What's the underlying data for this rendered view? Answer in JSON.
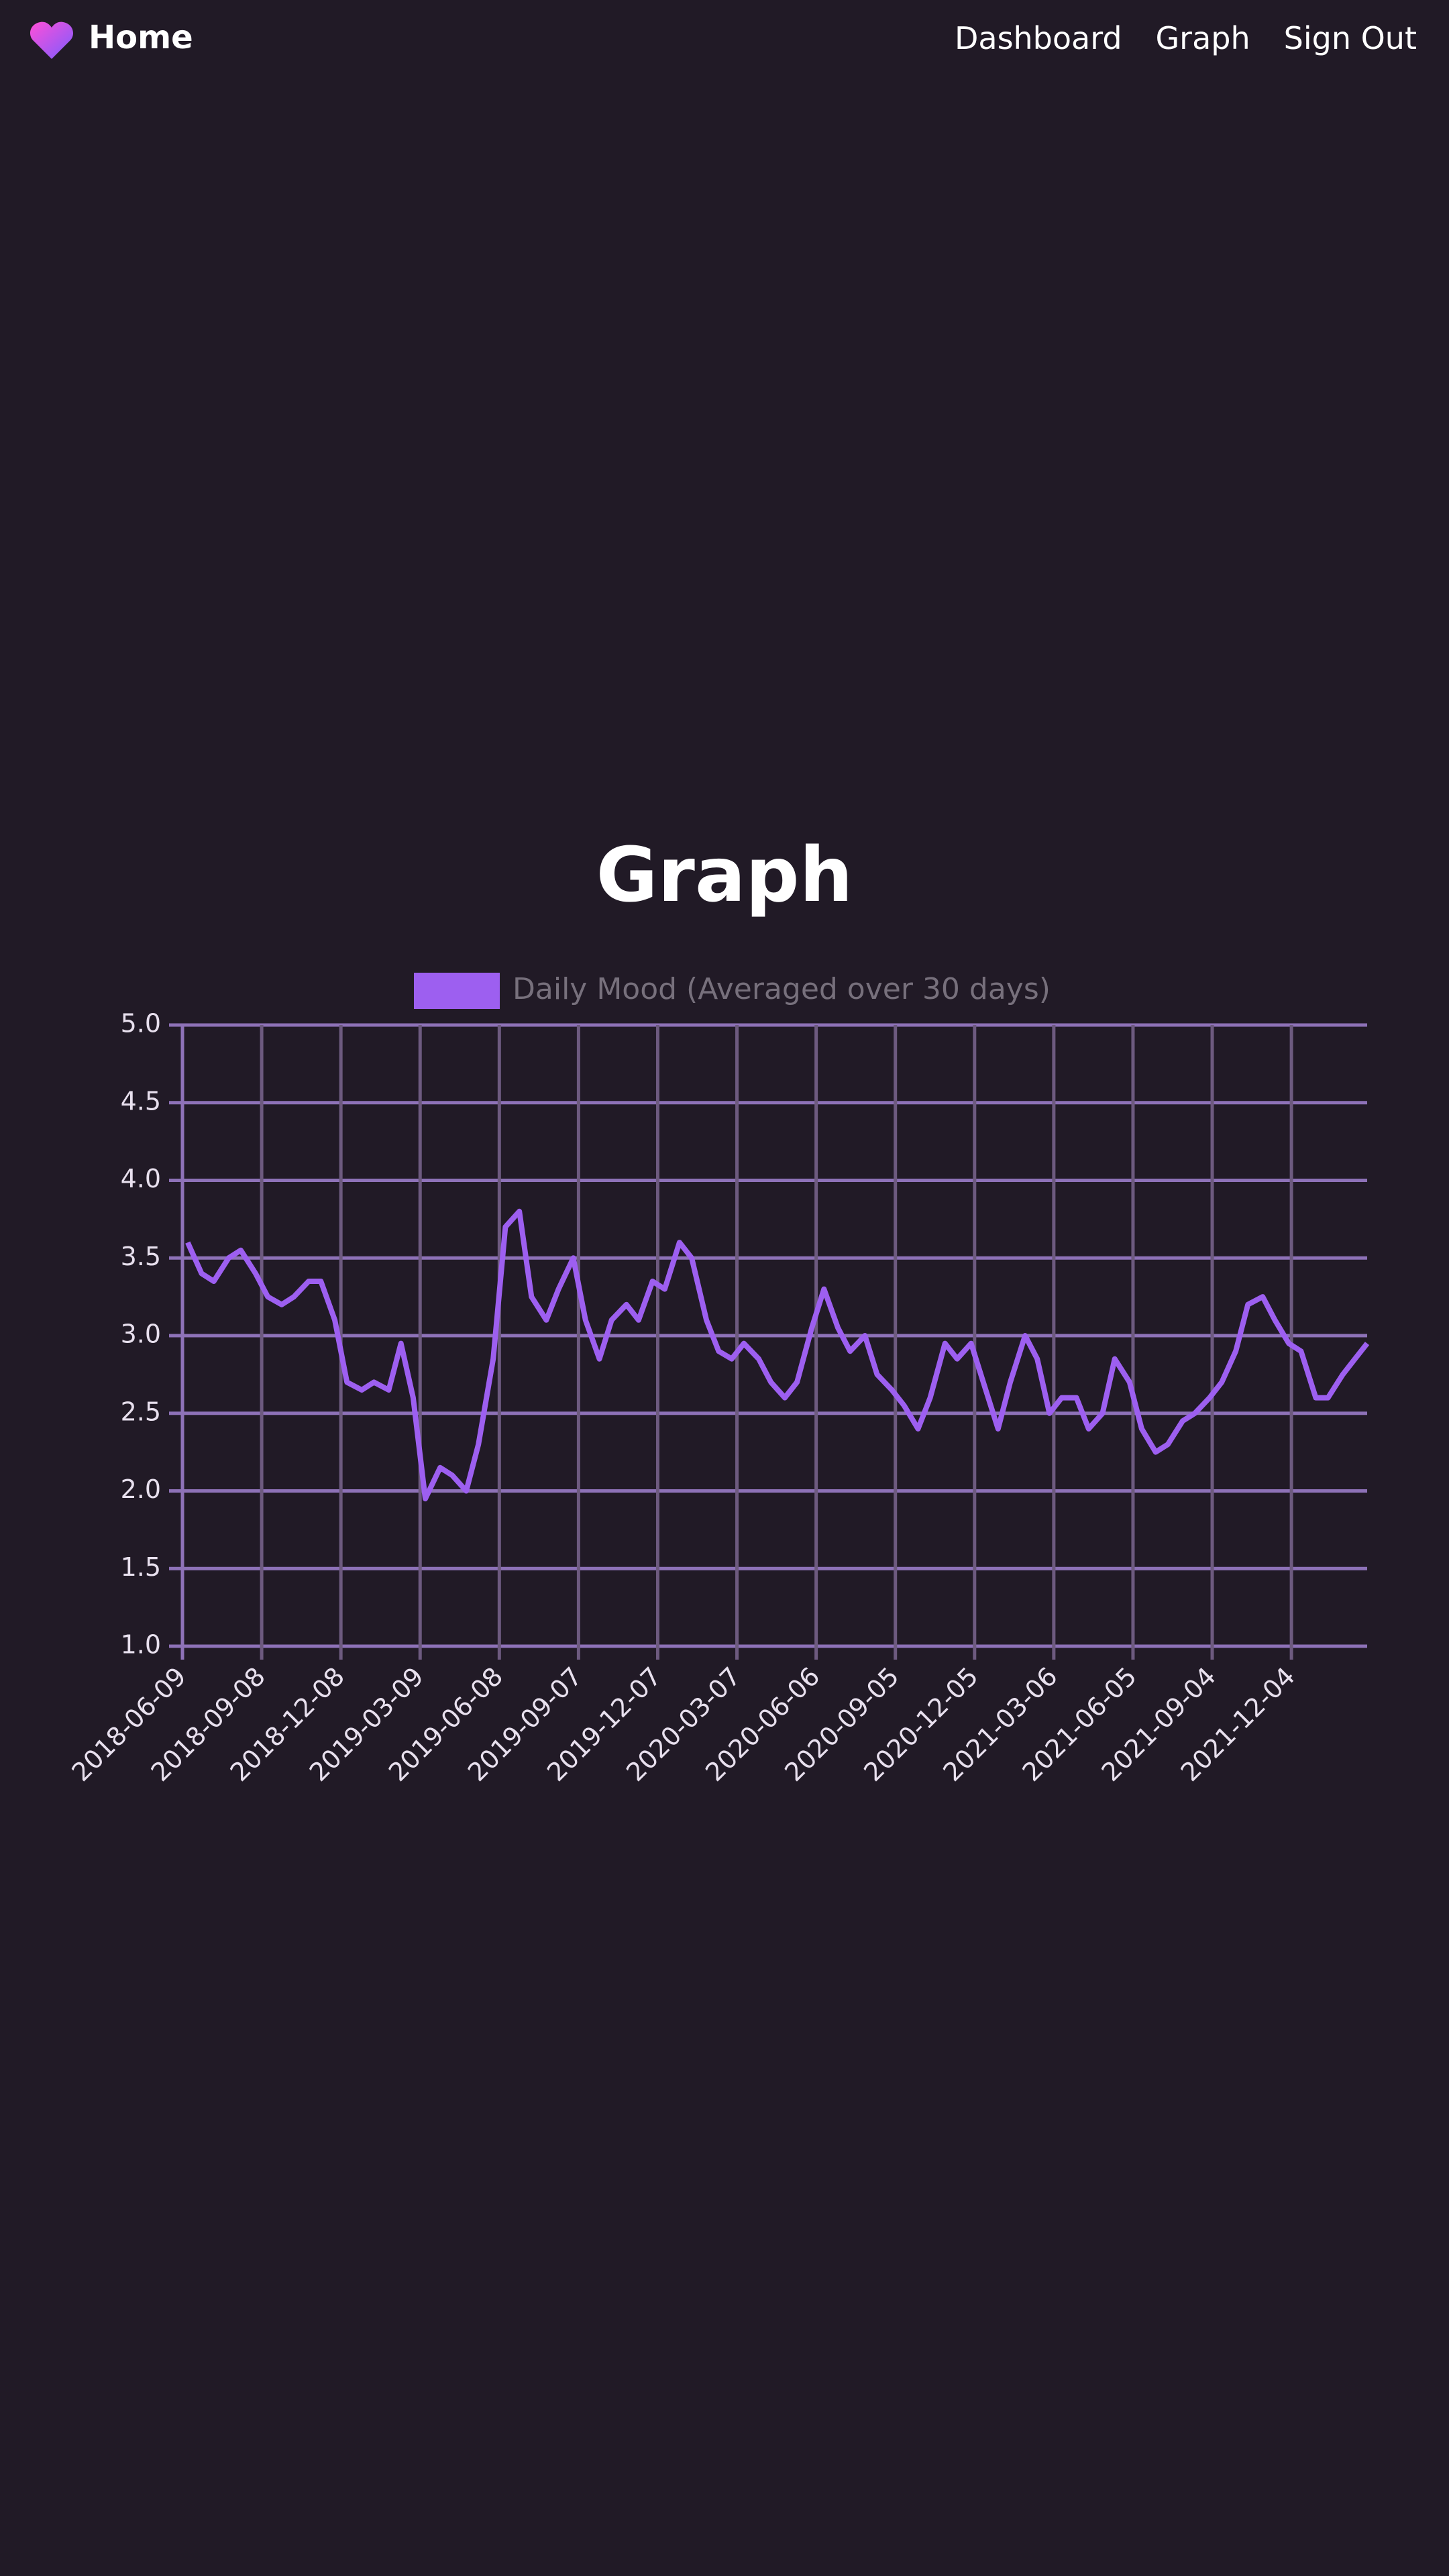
{
  "nav": {
    "brand": "Home",
    "links": [
      "Dashboard",
      "Graph",
      "Sign Out"
    ]
  },
  "page_title": "Graph",
  "chart_data": {
    "type": "line",
    "series": [
      {
        "name": "Daily Mood (Averaged over 30 days)",
        "color": "#9d5ff0",
        "values": [
          3.6,
          3.4,
          3.35,
          3.5,
          3.55,
          3.4,
          3.25,
          3.2,
          3.25,
          3.35,
          3.35,
          3.1,
          2.7,
          2.65,
          2.7,
          2.65,
          2.95,
          2.6,
          1.95,
          2.15,
          2.1,
          2,
          2.3,
          2.85,
          3.7,
          3.8,
          3.25,
          3.1,
          3.3,
          3.5,
          3.1,
          2.85,
          3.1,
          3.2,
          3.1,
          3.35,
          3.3,
          3.6,
          3.5,
          3.1,
          2.9,
          2.85,
          2.95,
          2.85,
          2.7,
          2.6,
          2.7,
          3.05,
          3.3,
          3.05,
          2.9,
          3,
          2.75,
          2.65,
          2.55,
          2.4,
          2.6,
          2.95,
          2.85,
          2.95,
          2.7,
          2.4,
          2.7,
          3,
          2.85,
          2.5,
          2.6,
          2.6,
          2.4,
          2.5,
          2.85,
          2.7,
          2.4,
          2.25,
          2.3,
          2.45,
          2.5,
          2.6,
          2.7,
          2.9,
          3.2,
          3.25,
          3.1,
          2.95,
          2.9,
          2.6,
          2.6,
          2.75,
          2.85,
          2.95
        ]
      }
    ],
    "x": [
      "2018-06-15",
      "2018-07-01",
      "2018-07-15",
      "2018-08-01",
      "2018-08-15",
      "2018-09-01",
      "2018-09-15",
      "2018-10-01",
      "2018-10-15",
      "2018-11-01",
      "2018-11-15",
      "2018-12-01",
      "2018-12-15",
      "2019-01-01",
      "2019-01-15",
      "2019-02-01",
      "2019-02-15",
      "2019-03-01",
      "2019-03-15",
      "2019-04-01",
      "2019-04-15",
      "2019-05-01",
      "2019-05-15",
      "2019-06-01",
      "2019-06-15",
      "2019-07-01",
      "2019-07-15",
      "2019-08-01",
      "2019-08-15",
      "2019-09-01",
      "2019-09-15",
      "2019-10-01",
      "2019-10-15",
      "2019-11-01",
      "2019-11-15",
      "2019-12-01",
      "2019-12-15",
      "2020-01-01",
      "2020-01-15",
      "2020-02-01",
      "2020-02-15",
      "2020-03-01",
      "2020-03-15",
      "2020-04-01",
      "2020-04-15",
      "2020-05-01",
      "2020-05-15",
      "2020-06-01",
      "2020-06-15",
      "2020-07-01",
      "2020-07-15",
      "2020-08-01",
      "2020-08-15",
      "2020-09-01",
      "2020-09-15",
      "2020-10-01",
      "2020-10-15",
      "2020-11-01",
      "2020-11-15",
      "2020-12-01",
      "2020-12-15",
      "2021-01-01",
      "2021-01-15",
      "2021-02-01",
      "2021-02-15",
      "2021-03-01",
      "2021-03-15",
      "2021-04-01",
      "2021-04-15",
      "2021-05-01",
      "2021-05-15",
      "2021-06-01",
      "2021-06-15",
      "2021-07-01",
      "2021-07-15",
      "2021-08-01",
      "2021-08-15",
      "2021-09-01",
      "2021-09-15",
      "2021-10-01",
      "2021-10-15",
      "2021-11-01",
      "2021-11-15",
      "2021-12-01",
      "2021-12-15",
      "2022-01-01",
      "2022-01-15",
      "2022-02-01",
      "2022-02-15",
      "2022-03-01"
    ],
    "xlim": [
      "2018-06-09",
      "2022-03-01"
    ],
    "xticks": [
      "2018-06-09",
      "2018-09-08",
      "2018-12-08",
      "2019-03-09",
      "2019-06-08",
      "2019-09-07",
      "2019-12-07",
      "2020-03-07",
      "2020-06-06",
      "2020-09-05",
      "2020-12-05",
      "2021-03-06",
      "2021-06-05",
      "2021-09-04",
      "2021-12-04"
    ],
    "ylim": [
      1,
      5
    ],
    "yticks": [
      {
        "value": 1,
        "label": "1.0"
      },
      1.5,
      {
        "value": 2,
        "label": "2.0"
      },
      2.5,
      {
        "value": 3,
        "label": "3.0"
      },
      3.5,
      {
        "value": 4,
        "label": "4.0"
      },
      4.5,
      {
        "value": 5,
        "label": "5.0"
      }
    ],
    "grid": true
  }
}
